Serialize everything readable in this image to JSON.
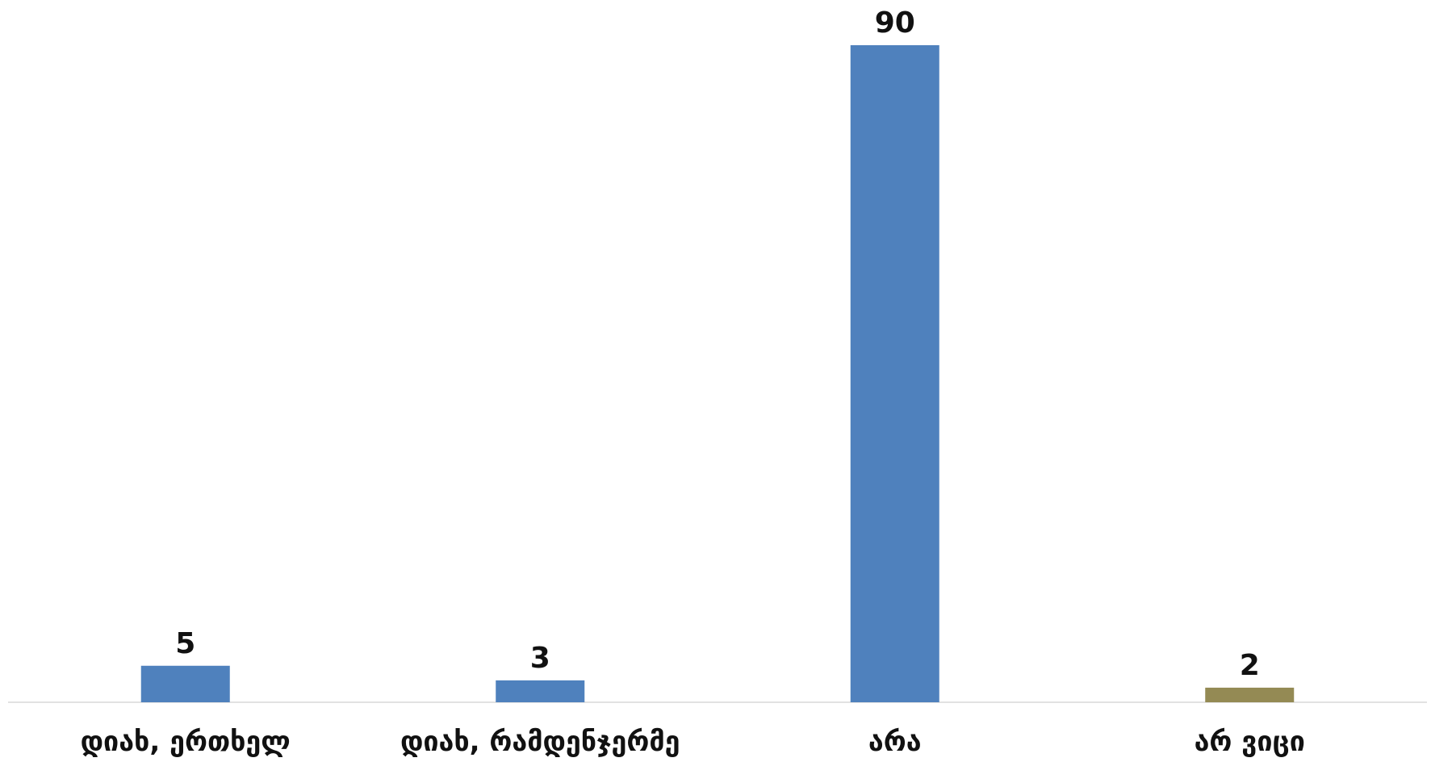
{
  "chart_data": {
    "type": "bar",
    "categories": [
      "დიახ, ერთხელ",
      "დიახ, რამდენჯერმე",
      "არა",
      "არ ვიცი"
    ],
    "values": [
      5,
      3,
      90,
      2
    ],
    "data_labels": [
      "5",
      "3",
      "90",
      "2"
    ],
    "bar_colors": [
      "#4F81BD",
      "#4F81BD",
      "#4F81BD",
      "#948A54"
    ],
    "ylim": [
      0,
      90
    ],
    "grid": false,
    "legend": "none",
    "axis_color": "#D9D9D9"
  }
}
